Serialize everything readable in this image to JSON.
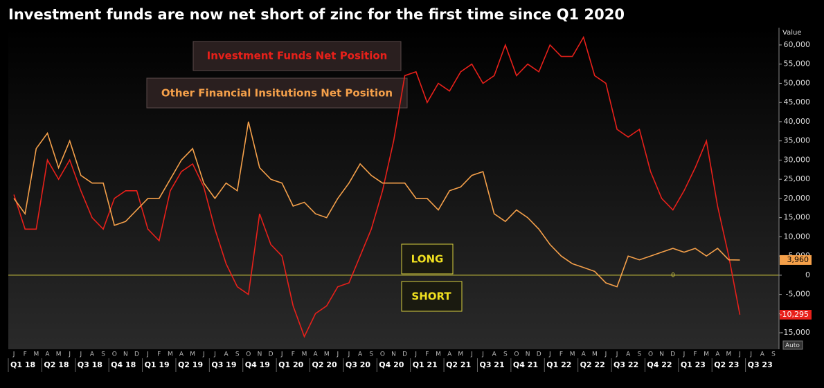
{
  "chart_data": {
    "type": "line",
    "title": "Investment funds are now net short of zinc for the first time since Q1 2020",
    "y_axis_label": "Value",
    "button": "Auto",
    "annotations": [
      "LONG",
      "SHORT"
    ],
    "categories": [
      "J",
      "F",
      "M",
      "A",
      "M",
      "J",
      "J",
      "A",
      "S",
      "O",
      "N",
      "D",
      "J",
      "F",
      "M",
      "A",
      "M",
      "J",
      "J",
      "A",
      "S",
      "O",
      "N",
      "D",
      "J",
      "F",
      "M",
      "A",
      "M",
      "J",
      "J",
      "A",
      "S",
      "O",
      "N",
      "D",
      "J",
      "F",
      "M",
      "A",
      "M",
      "J",
      "J",
      "A",
      "S",
      "O",
      "N",
      "D",
      "J",
      "F",
      "M",
      "A",
      "M",
      "J",
      "J",
      "A",
      "S",
      "O",
      "N",
      "D",
      "J",
      "F",
      "M",
      "A",
      "M",
      "J",
      "J",
      "A",
      "S"
    ],
    "quarters": [
      "Q1 18",
      "Q2 18",
      "Q3 18",
      "Q4 18",
      "Q1 19",
      "Q2 19",
      "Q3 19",
      "Q4 19",
      "Q1 20",
      "Q2 20",
      "Q3 20",
      "Q4 20",
      "Q1 21",
      "Q2 21",
      "Q3 21",
      "Q4 21",
      "Q1 22",
      "Q2 22",
      "Q3 22",
      "Q4 22",
      "Q1 23",
      "Q2 23",
      "Q3 23"
    ],
    "series": [
      {
        "name": "Investment Funds Net Position",
        "color": "#e8201a",
        "values": [
          21000,
          12000,
          12000,
          30000,
          25000,
          30000,
          22000,
          15000,
          12000,
          20000,
          22000,
          22000,
          12000,
          9000,
          22000,
          27000,
          29000,
          23000,
          12000,
          3000,
          -3000,
          -5000,
          16000,
          8000,
          5000,
          -8000,
          -16000,
          -10000,
          -8000,
          -3000,
          -2000,
          5000,
          12000,
          22000,
          35000,
          52000,
          53000,
          45000,
          50000,
          48000,
          53000,
          55000,
          50000,
          52000,
          60000,
          52000,
          55000,
          53000,
          60000,
          57000,
          57000,
          62000,
          52000,
          50000,
          38000,
          36000,
          38000,
          27000,
          20000,
          17000,
          22000,
          28000,
          35000,
          18000,
          5000,
          -10295,
          null,
          null,
          null
        ],
        "value_labels": [
          null,
          null,
          null,
          null,
          null,
          null,
          null,
          null,
          null,
          null,
          null,
          null,
          null,
          null,
          null,
          null,
          null,
          null,
          null,
          null,
          null,
          null,
          null,
          null,
          null,
          null,
          null,
          null,
          null,
          null,
          null,
          null,
          null,
          null,
          null,
          null,
          null,
          null,
          null,
          null,
          null,
          null,
          null,
          null,
          null,
          null,
          null,
          null,
          null,
          null,
          null,
          null,
          null,
          null,
          null,
          null,
          null,
          null,
          null,
          null,
          null,
          null,
          null,
          null,
          null,
          "-10,295",
          null,
          null,
          null
        ]
      },
      {
        "name": "Other Financial Insitutions Net Position",
        "color": "#f5a04a",
        "values": [
          20000,
          16000,
          33000,
          37000,
          28000,
          35000,
          26000,
          24000,
          24000,
          13000,
          14000,
          17000,
          20000,
          20000,
          25000,
          30000,
          33000,
          24000,
          20000,
          24000,
          22000,
          40000,
          28000,
          25000,
          24000,
          18000,
          19000,
          16000,
          15000,
          20000,
          24000,
          29000,
          26000,
          24000,
          24000,
          24000,
          20000,
          20000,
          17000,
          22000,
          23000,
          26000,
          27000,
          16000,
          14000,
          17000,
          15000,
          12000,
          8000,
          5000,
          3000,
          2000,
          1000,
          -2000,
          -3000,
          5000,
          4000,
          5000,
          6000,
          7000,
          6000,
          7000,
          5000,
          7000,
          4000,
          3960,
          null,
          null,
          null
        ],
        "value_labels": [
          null,
          null,
          null,
          null,
          null,
          null,
          null,
          null,
          null,
          null,
          null,
          null,
          null,
          null,
          null,
          null,
          null,
          null,
          null,
          null,
          null,
          null,
          null,
          null,
          null,
          null,
          null,
          null,
          null,
          null,
          null,
          null,
          null,
          null,
          null,
          null,
          null,
          null,
          null,
          null,
          null,
          null,
          null,
          null,
          null,
          null,
          null,
          null,
          null,
          null,
          null,
          null,
          null,
          null,
          null,
          null,
          null,
          null,
          null,
          null,
          null,
          null,
          null,
          null,
          null,
          "3,960",
          null,
          null,
          null
        ]
      }
    ],
    "ylim": [
      -19300,
      64500
    ],
    "yticks": [
      {
        "value": 60000,
        "label": "60,000"
      },
      {
        "value": 55000,
        "label": "55,000"
      },
      {
        "value": 50000,
        "label": "50,000"
      },
      {
        "value": 45000,
        "label": "45,000"
      },
      {
        "value": 40000,
        "label": "40,000"
      },
      {
        "value": 35000,
        "label": "35,000"
      },
      {
        "value": 30000,
        "label": "30,000"
      },
      {
        "value": 25000,
        "label": "25,000"
      },
      {
        "value": 20000,
        "label": "20,000"
      },
      {
        "value": 15000,
        "label": "15,000"
      },
      {
        "value": 10000,
        "label": "10,000"
      },
      {
        "value": 5000,
        "label": "5,000"
      },
      0,
      {
        "value": -5000,
        "label": "-5,000"
      },
      {
        "value": -10000,
        "label": "-10,000"
      },
      {
        "value": -15000,
        "label": "-15,000"
      }
    ],
    "zero_line_color": "#d8d040"
  }
}
